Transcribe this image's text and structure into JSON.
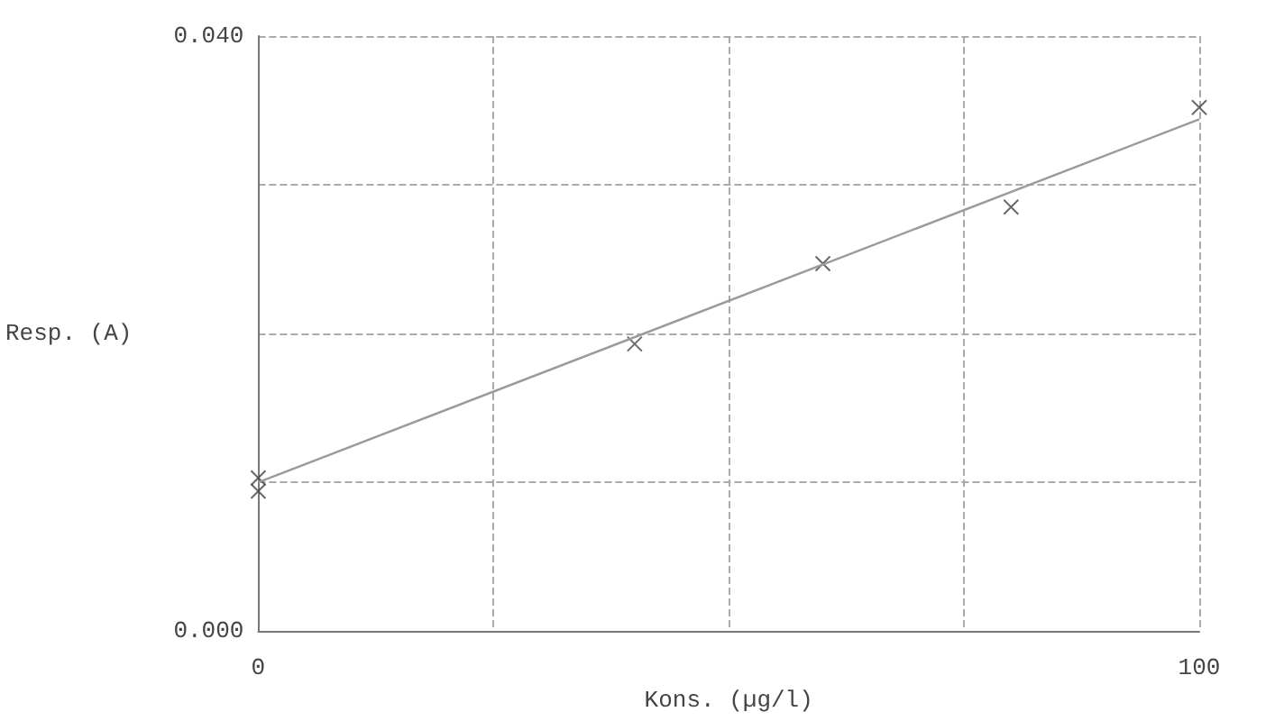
{
  "chart_data": {
    "type": "scatter",
    "xlabel": "Kons. (µg/l)",
    "ylabel": "Resp. (A)",
    "xlim": [
      0,
      100
    ],
    "ylim": [
      0,
      0.04
    ],
    "xticks": [
      0,
      {
        "value": 25,
        "label": null
      },
      {
        "value": 50,
        "label": null
      },
      {
        "value": 75,
        "label": null
      },
      100
    ],
    "yticks": [
      {
        "value": 0,
        "label": "0.000"
      },
      {
        "value": 0.01,
        "label": null
      },
      {
        "value": 0.02,
        "label": null
      },
      {
        "value": 0.03,
        "label": null
      },
      {
        "value": 0.04,
        "label": "0.040"
      }
    ],
    "grid": true,
    "series": [
      {
        "color": "#444444",
        "marker": "cross",
        "x": [
          0,
          0,
          40,
          60,
          80,
          100
        ],
        "values": [
          0.0103,
          0.0094,
          0.0193,
          0.0247,
          0.0285,
          0.0352
        ]
      },
      {
        "type": "line",
        "color": "#9a9a9a",
        "marker": "none",
        "line_style": "solid",
        "x": [
          0,
          100
        ],
        "values": [
          0.01,
          0.0344
        ]
      }
    ]
  }
}
